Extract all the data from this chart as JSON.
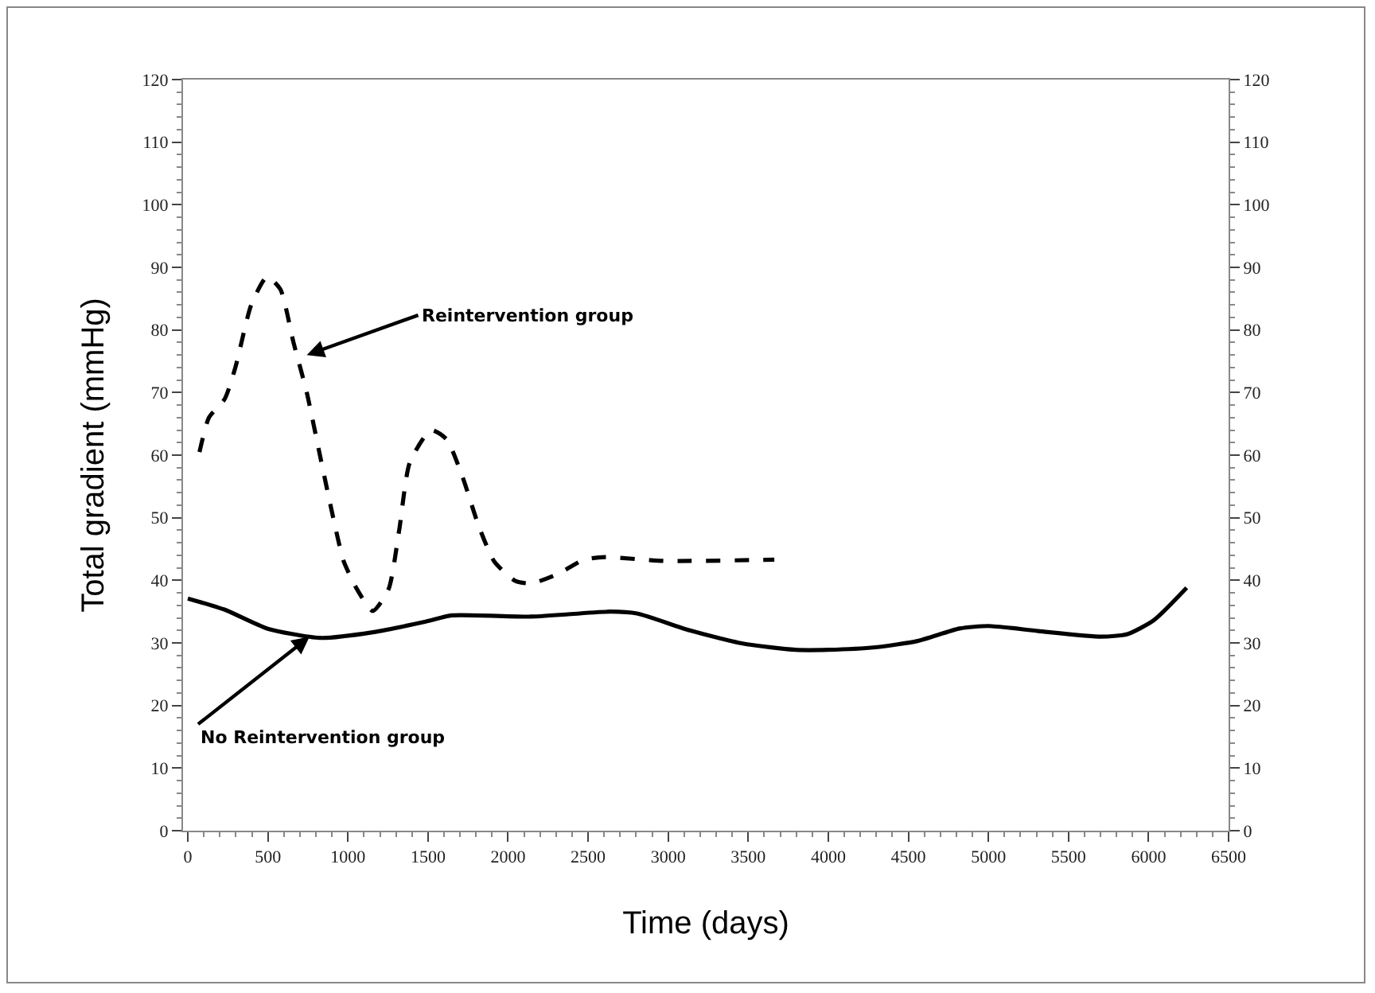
{
  "chart_data": {
    "type": "line",
    "xlabel": "Time (days)",
    "ylabel": "Total gradient (mmHg)",
    "xlim": [
      -30,
      6500
    ],
    "xticks": [
      0,
      500,
      1000,
      1500,
      2000,
      2500,
      3000,
      3500,
      4000,
      4500,
      5000,
      5500,
      6000,
      6500
    ],
    "ylim": [
      0,
      120
    ],
    "yticks": [
      0,
      10,
      20,
      30,
      40,
      50,
      60,
      70,
      80,
      90,
      100,
      110,
      120
    ],
    "y2lim": [
      0,
      120
    ],
    "y2ticks": [
      0,
      10,
      20,
      30,
      40,
      50,
      60,
      70,
      80,
      90,
      100,
      110,
      120
    ],
    "grid": false,
    "marker": "none",
    "series": [
      {
        "color": "#000000",
        "line_style": "dashed",
        "x": [
          73,
          132,
          231,
          297,
          396,
          495,
          578,
          660,
          743,
          825,
          908,
          974,
          1056,
          1155,
          1254,
          1320,
          1386,
          1518,
          1617,
          1716,
          1815,
          1914,
          2046,
          2145,
          2310,
          2475,
          2607,
          2970,
          3663
        ],
        "values": [
          60.5,
          66,
          69,
          74,
          84,
          88.5,
          86.5,
          78,
          70,
          60,
          50,
          43,
          38.6,
          35.1,
          38.6,
          48,
          58.8,
          64,
          62.5,
          56.5,
          48.8,
          43,
          39.9,
          39.5,
          41,
          43.3,
          43.7,
          43.1,
          43.3
        ]
      },
      {
        "color": "#000000",
        "line_style": "solid",
        "x": [
          0,
          231,
          495,
          825,
          1155,
          1485,
          1650,
          2145,
          2640,
          2805,
          3135,
          3465,
          3795,
          4000,
          4295,
          4557,
          4820,
          5000,
          5311,
          5704,
          5868,
          6032,
          6238
        ],
        "values": [
          37.1,
          35.3,
          32.3,
          30.8,
          31.7,
          33.4,
          34.4,
          34.2,
          35,
          34.7,
          32,
          29.9,
          28.9,
          28.9,
          29.3,
          30.3,
          32.3,
          32.7,
          31.9,
          31,
          31.4,
          33.6,
          38.8
        ]
      }
    ],
    "annotations": [
      {
        "text": "Reintervention group",
        "x": 743,
        "y": 76
      },
      {
        "text": "No Reintervention group",
        "x": 760,
        "y": 31
      }
    ]
  }
}
